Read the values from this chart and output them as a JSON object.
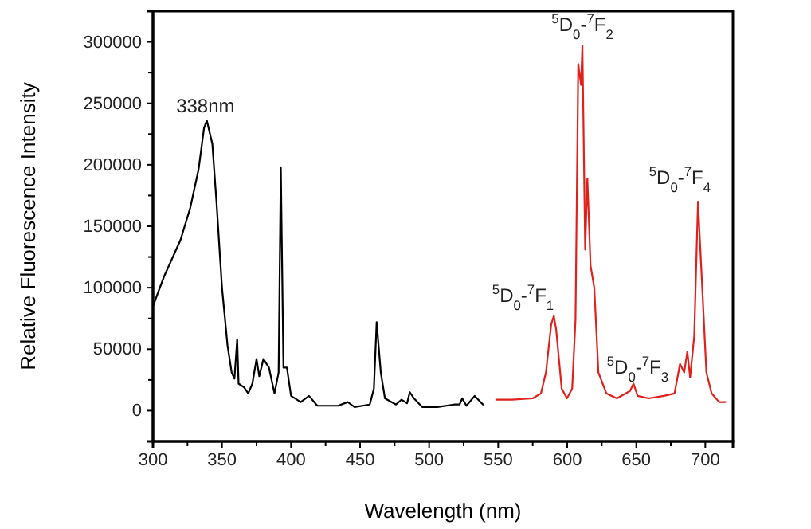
{
  "chart_data": {
    "type": "line",
    "xlabel": "Wavelength (nm)",
    "ylabel": "Relative Fluorescence Intensity",
    "xlim": [
      300,
      720
    ],
    "ylim": [
      -25000,
      325000
    ],
    "xticks": [
      300,
      {
        "value": 325,
        "label": null
      },
      350,
      {
        "value": 375,
        "label": null
      },
      400,
      {
        "value": 425,
        "label": null
      },
      450,
      {
        "value": 475,
        "label": null
      },
      500,
      {
        "value": 525,
        "label": null
      },
      550,
      {
        "value": 575,
        "label": null
      },
      600,
      {
        "value": 625,
        "label": null
      },
      650,
      {
        "value": 675,
        "label": null
      },
      700
    ],
    "yticks": [
      0,
      {
        "value": 25000,
        "label": null
      },
      50000,
      {
        "value": 75000,
        "label": null
      },
      100000,
      {
        "value": 125000,
        "label": null
      },
      150000,
      {
        "value": 175000,
        "label": null
      },
      200000,
      {
        "value": 225000,
        "label": null
      },
      250000,
      {
        "value": 275000,
        "label": null
      },
      300000
    ],
    "grid": false,
    "marker": "none",
    "line_style": "solid",
    "series": [
      {
        "color": "#000000",
        "x": [
          300,
          308,
          320,
          327,
          333,
          337,
          339,
          343,
          346,
          350,
          354,
          357,
          359,
          361,
          362,
          366,
          369,
          372,
          375,
          377,
          380,
          384,
          388,
          391,
          392.6,
          394.5,
          397,
          400,
          407,
          413,
          419,
          434,
          441,
          446,
          457,
          460,
          462,
          465,
          468,
          476,
          480,
          484,
          486,
          489,
          495,
          506,
          518,
          522,
          524,
          527,
          533,
          539,
          540
        ],
        "values": [
          85000,
          109000,
          139000,
          165000,
          196000,
          230000,
          236000,
          217000,
          170000,
          100000,
          53000,
          31000,
          26000,
          58000,
          22000,
          19000,
          14000,
          22000,
          42000,
          28000,
          42000,
          35000,
          14000,
          31000,
          198000,
          35000,
          35000,
          12000,
          7000,
          12000,
          4000,
          4000,
          7000,
          3000,
          5000,
          18000,
          72000,
          31000,
          10000,
          5000,
          9000,
          6000,
          15000,
          10000,
          3000,
          3000,
          5000,
          5000,
          10000,
          4000,
          12000,
          5000,
          5000
        ]
      },
      {
        "color": "#e0201b",
        "x": [
          548,
          560,
          575,
          581,
          584.6,
          588.4,
          590.3,
          592,
          596,
          599.8,
          603.6,
          606,
          608,
          610,
          611,
          613,
          614.6,
          616.9,
          619.6,
          622.6,
          628.4,
          636,
          645.5,
          648,
          651,
          659,
          670,
          677.7,
          681.7,
          684.7,
          687,
          689,
          692,
          694.7,
          697,
          700.8,
          704.6,
          710,
          715
        ],
        "values": [
          9000,
          9000,
          10000,
          14000,
          31000,
          70000,
          77000,
          66000,
          18000,
          10000,
          18000,
          74000,
          282000,
          265000,
          297000,
          131000,
          189000,
          118000,
          100000,
          31000,
          14000,
          10000,
          16000,
          22000,
          12000,
          10000,
          12000,
          14000,
          38000,
          31000,
          48000,
          27000,
          61000,
          170000,
          118000,
          31000,
          14000,
          7000,
          7000
        ]
      }
    ],
    "annotations": [
      {
        "text": "338nm",
        "x": 338,
        "y": 236000
      },
      {
        "text": "$^{5}$D$_{0}$-$^{7}$F$_{1}$",
        "x": 588,
        "y": 77000
      },
      {
        "text": "$^{5}$D$_{0}$-$^{7}$F$_{2}$",
        "x": 611,
        "y": 297000
      },
      {
        "text": "$^{5}$D$_{0}$-$^{7}$F$_{3}$",
        "x": 651,
        "y": 12000
      },
      {
        "text": "$^{5}$D$_{0}$-$^{7}$F$_{4}$",
        "x": 697,
        "y": 170000
      }
    ]
  }
}
